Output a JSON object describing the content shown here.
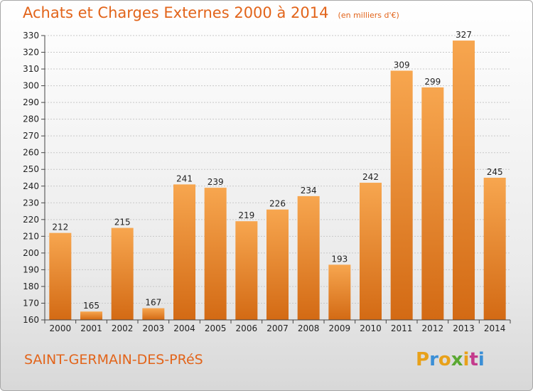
{
  "title": "Achats et Charges Externes 2000 à 2014",
  "subtitle": "(en milliers d'€)",
  "commune": "SAINT-GERMAIN-DES-PRéS",
  "logo": {
    "letters": [
      "P",
      "r",
      "o",
      "x",
      "i",
      "t",
      "i"
    ],
    "colors": [
      "#e8a11a",
      "#3b8fd6",
      "#e8a11a",
      "#5aa832",
      "#e8a11a",
      "#c43b8c",
      "#3b8fd6"
    ]
  },
  "colors": {
    "bar_top": "#f7a64f",
    "bar_bottom": "#d36a14",
    "title": "#e2641a"
  },
  "chart_data": {
    "type": "bar",
    "categories": [
      "2000",
      "2001",
      "2002",
      "2003",
      "2004",
      "2005",
      "2006",
      "2007",
      "2008",
      "2009",
      "2010",
      "2011",
      "2012",
      "2013",
      "2014"
    ],
    "values": [
      212,
      165,
      215,
      167,
      241,
      239,
      219,
      226,
      234,
      193,
      242,
      309,
      299,
      327,
      245
    ],
    "ylim": [
      160,
      330
    ],
    "yticks": [
      160,
      170,
      180,
      190,
      200,
      210,
      220,
      230,
      240,
      250,
      260,
      270,
      280,
      290,
      300,
      310,
      320,
      330
    ],
    "grid": true
  }
}
